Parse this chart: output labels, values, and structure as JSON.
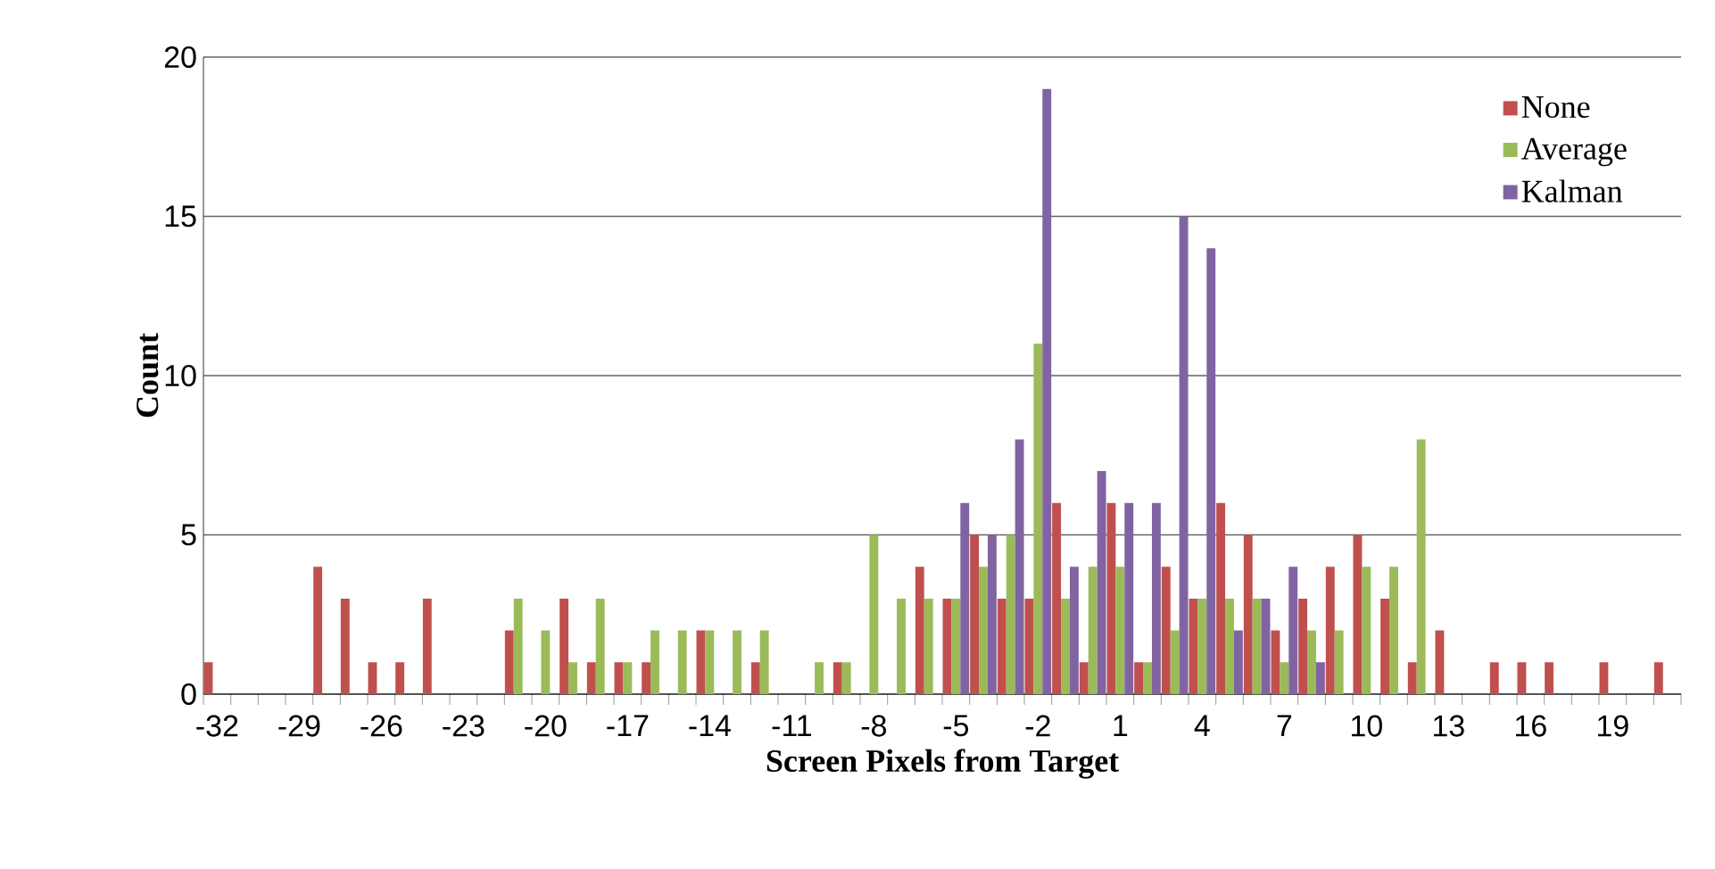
{
  "chart_data": {
    "type": "bar",
    "xlabel": "Screen Pixels from Target",
    "ylabel": "Count",
    "categories": [
      "-32",
      null,
      null,
      "-29",
      null,
      null,
      "-26",
      null,
      null,
      "-23",
      null,
      null,
      "-20",
      null,
      null,
      "-17",
      null,
      null,
      "-14",
      null,
      null,
      "-11",
      null,
      null,
      "-8",
      null,
      null,
      "-5",
      null,
      null,
      "-2",
      null,
      null,
      "1",
      null,
      null,
      "4",
      null,
      null,
      "7",
      null,
      null,
      "10",
      null,
      null,
      "13",
      null,
      null,
      "16",
      null,
      null,
      "19",
      null,
      null
    ],
    "series": [
      {
        "name": "None",
        "color": "#c0504d",
        "values": [
          1,
          0,
          0,
          0,
          4,
          3,
          1,
          1,
          3,
          0,
          0,
          2,
          0,
          3,
          1,
          1,
          1,
          0,
          2,
          0,
          1,
          0,
          0,
          1,
          0,
          0,
          4,
          3,
          5,
          3,
          3,
          6,
          1,
          6,
          1,
          4,
          3,
          6,
          5,
          2,
          3,
          4,
          5,
          3,
          1,
          2,
          0,
          1,
          1,
          1,
          0,
          1,
          0,
          1
        ]
      },
      {
        "name": "Average",
        "color": "#9bbb59",
        "values": [
          0,
          0,
          0,
          0,
          0,
          0,
          0,
          0,
          0,
          0,
          0,
          3,
          2,
          1,
          3,
          1,
          2,
          2,
          2,
          2,
          2,
          0,
          1,
          1,
          5,
          3,
          3,
          3,
          4,
          5,
          11,
          3,
          4,
          4,
          1,
          2,
          3,
          3,
          3,
          1,
          2,
          2,
          4,
          4,
          8,
          0,
          0,
          0,
          0,
          0,
          0,
          0,
          0,
          0
        ]
      },
      {
        "name": "Kalman",
        "color": "#8064a2",
        "values": [
          0,
          0,
          0,
          0,
          0,
          0,
          0,
          0,
          0,
          0,
          0,
          0,
          0,
          0,
          0,
          0,
          0,
          0,
          0,
          0,
          0,
          0,
          0,
          0,
          0,
          0,
          0,
          6,
          5,
          8,
          19,
          4,
          7,
          6,
          6,
          15,
          14,
          2,
          3,
          4,
          1,
          0,
          0,
          0,
          0,
          0,
          0,
          0,
          0,
          0,
          0,
          0,
          0,
          0
        ]
      }
    ],
    "ylim": [
      0,
      20
    ],
    "yticks": [
      0,
      5,
      10,
      15,
      20
    ],
    "grid": "y",
    "legend": "top right"
  }
}
